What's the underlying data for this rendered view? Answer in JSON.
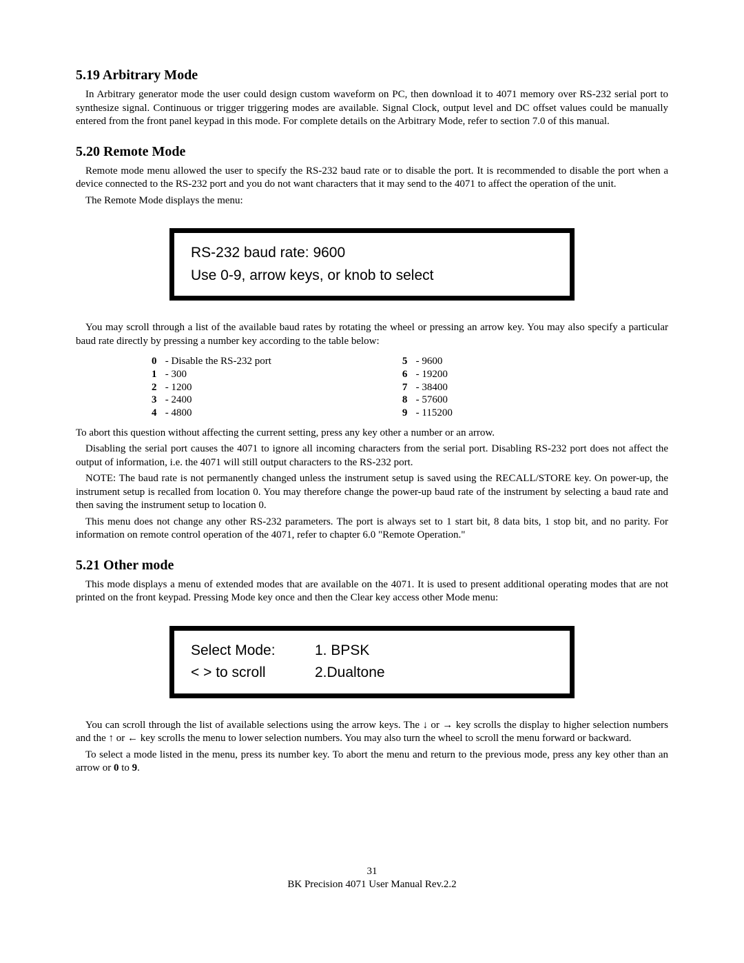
{
  "section519": {
    "heading": "5.19 Arbitrary Mode",
    "p1": "In Arbitrary generator mode the user could design custom waveform on PC, then download it to 4071 memory over RS-232 serial port to synthesize signal. Continuous or trigger triggering modes are available. Signal Clock, output level and DC offset values could be manually entered from the front panel keypad in this mode. For complete details on the Arbitrary Mode, refer to section 7.0 of this manual."
  },
  "section520": {
    "heading": "5.20  Remote Mode",
    "p1": "Remote mode menu allowed the user to specify the RS-232 baud rate or to disable the port. It is recommended to disable the port when a device connected to the RS-232 port and you do not want characters that it may send to the 4071 to affect the operation of the unit.",
    "p2": "The Remote Mode displays the menu:",
    "display": {
      "line1": "RS-232 baud rate:  9600",
      "line2": "Use 0-9, arrow keys, or knob to select"
    },
    "p3": "You may scroll through a list of the available baud rates by rotating the wheel or pressing an arrow key. You may also specify a particular baud rate directly by pressing a number key according to the table below:",
    "baud_left": [
      {
        "key": "0",
        "label": "- Disable the RS-232 port"
      },
      {
        "key": "1",
        "label": "- 300"
      },
      {
        "key": "2",
        "label": "- 1200"
      },
      {
        "key": "3",
        "label": "- 2400"
      },
      {
        "key": "4",
        "label": "- 4800"
      }
    ],
    "baud_right": [
      {
        "key": "5",
        "label": "- 9600"
      },
      {
        "key": "6",
        "label": "- 19200"
      },
      {
        "key": "7",
        "label": "- 38400"
      },
      {
        "key": "8",
        "label": "- 57600"
      },
      {
        "key": "9",
        "label": "- 115200"
      }
    ],
    "p4": "To abort this question without affecting the current setting, press any key other a number or an arrow.",
    "p5": "Disabling the serial port causes the 4071 to ignore all incoming characters from the serial port. Disabling RS-232 port does not affect the output of information, i.e. the 4071 will still output characters to the RS-232 port.",
    "p6": "NOTE: The baud rate is not permanently changed unless the instrument setup is saved using the RECALL/STORE key. On power-up, the instrument setup is recalled from location 0. You may therefore change the power-up baud rate of the instrument by selecting a baud rate and then saving the instrument setup to location 0.",
    "p7": "This menu does not change any other RS-232 parameters. The port is always set to 1 start bit, 8 data bits, 1 stop bit, and no parity. For information on remote control operation of the 4071, refer to chapter 6.0 \"Remote Operation.\""
  },
  "section521": {
    "heading": "5.21 Other mode",
    "p1": "This mode displays a menu of extended modes that are available on the 4071.  It is used to present additional operating modes that are not printed on the front keypad.  Pressing Mode key once and then the Clear key access other Mode menu:",
    "display": {
      "label1": "Select Mode:",
      "val1": "1. BPSK",
      "label2": "< > to scroll",
      "val2": "2.Dualtone"
    },
    "p2_a": "You can scroll through the list of available selections using the arrow keys.  The ",
    "p2_b": " or ",
    "p2_c": " key scrolls the display to higher selection numbers and the ",
    "p2_d": "  or  ",
    "p2_e": "  key scrolls the menu to lower selection numbers.  You may also turn the wheel to scroll the menu forward or backward.",
    "p3_a": "To select a mode listed in the menu, press its number key. To abort the menu and return to the previous mode, press any key other than an arrow or ",
    "p3_zero": "0",
    "p3_b": " to ",
    "p3_nine": "9",
    "p3_c": "."
  },
  "arrows": {
    "down": "↓",
    "right": "→",
    "up": "↑",
    "left": "←"
  },
  "footer": {
    "pagenum": "31",
    "docline": "BK Precision 4071 User Manual Rev.2.2"
  }
}
